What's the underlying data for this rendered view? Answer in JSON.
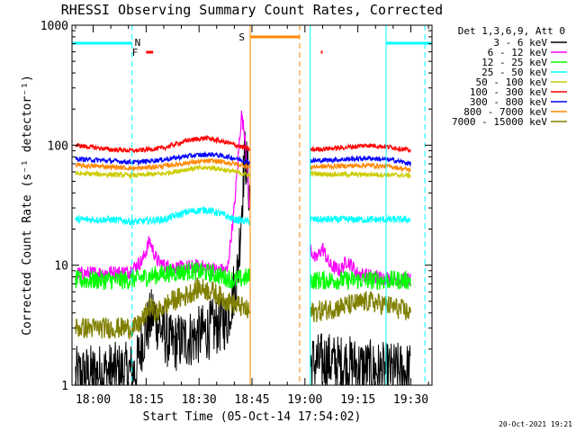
{
  "chart_data": {
    "type": "line",
    "title": "RHESSI Observing Summary Count Rates, Corrected",
    "xlabel": "Start Time (05-Oct-14 17:54:02)",
    "ylabel": "Corrected Count Rate (s⁻¹ detector⁻¹)",
    "yscale": "log",
    "ylim": [
      1,
      1000
    ],
    "xlim_minutes": [
      -6,
      96
    ],
    "x_ticks": [
      {
        "label": "18:00",
        "min": 0
      },
      {
        "label": "18:15",
        "min": 15
      },
      {
        "label": "18:30",
        "min": 30
      },
      {
        "label": "18:45",
        "min": 45
      },
      {
        "label": "19:00",
        "min": 60
      },
      {
        "label": "19:15",
        "min": 75
      },
      {
        "label": "19:30",
        "min": 90
      }
    ],
    "y_ticks": [
      {
        "label": "1",
        "value": 1
      },
      {
        "label": "10",
        "value": 10
      },
      {
        "label": "100",
        "value": 100
      },
      {
        "label": "1000",
        "value": 1000
      }
    ],
    "legend_header": "Det 1,3,6,9, Att 0",
    "legend_placement": "right",
    "timestamp": "20-Oct-2021 19:21",
    "data_gap_minutes": [
      45,
      61.5
    ],
    "series": [
      {
        "name": "3 - 6 keV",
        "color": "#000000",
        "x": [
          -5,
          5,
          12,
          14,
          17,
          19,
          22,
          30,
          38,
          41,
          43,
          44.5
        ],
        "y": [
          1.2,
          1.3,
          1.3,
          2.4,
          4.0,
          3.0,
          2.2,
          2.6,
          3.5,
          9.0,
          90.0,
          35.0
        ],
        "x2": [
          61.5,
          66,
          69,
          72,
          76,
          82,
          90
        ],
        "y2": [
          1.5,
          1.6,
          1.5,
          1.5,
          1.4,
          1.3,
          1.3
        ]
      },
      {
        "name": "6 - 12 keV",
        "color": "#ff00ff",
        "x": [
          -5,
          10,
          14,
          16,
          18,
          20,
          24,
          30,
          34,
          38,
          40,
          42,
          43,
          44.5
        ],
        "y": [
          8.5,
          8.8,
          11.0,
          16.0,
          11.0,
          10.0,
          9.5,
          9.8,
          9.2,
          9.0,
          30.0,
          180.0,
          120.0,
          25.0
        ],
        "x2": [
          61.5,
          63,
          65,
          67,
          70,
          72,
          75,
          80,
          90
        ],
        "y2": [
          14.0,
          11.0,
          14.0,
          10.0,
          9.0,
          11.0,
          8.5,
          8.0,
          7.5
        ]
      },
      {
        "name": "12 - 25 keV",
        "color": "#00ff00",
        "x": [
          -5,
          10,
          20,
          28,
          34,
          40,
          44.5
        ],
        "y": [
          7.5,
          7.5,
          8.5,
          9.0,
          8.5,
          7.5,
          8.0
        ],
        "x2": [
          61.5,
          70,
          80,
          90
        ],
        "y2": [
          7.5,
          7.5,
          7.5,
          7.5
        ]
      },
      {
        "name": "25 - 50 keV",
        "color": "#00ffff",
        "x": [
          -5,
          5,
          12,
          20,
          27,
          32,
          36,
          40,
          44.5
        ],
        "y": [
          24.0,
          24.0,
          23.0,
          24.0,
          28.0,
          29.0,
          27.0,
          24.0,
          23.0
        ],
        "x2": [
          61.5,
          70,
          80,
          90
        ],
        "y2": [
          24.0,
          24.0,
          24.0,
          24.0
        ]
      },
      {
        "name": "50 - 100 keV",
        "color": "#cccc00",
        "x": [
          -5,
          5,
          12,
          20,
          28,
          34,
          40,
          44.5
        ],
        "y": [
          58.0,
          57.0,
          56.0,
          58.0,
          64.0,
          65.0,
          60.0,
          56.0
        ],
        "x2": [
          61.5,
          70,
          80,
          90
        ],
        "y2": [
          58.0,
          57.0,
          57.0,
          56.0
        ]
      },
      {
        "name": "100 - 300 keV",
        "color": "#ff0000",
        "x": [
          -5,
          5,
          12,
          20,
          27,
          32,
          38,
          44.5
        ],
        "y": [
          100.0,
          92.0,
          90.0,
          95.0,
          110.0,
          115.0,
          105.0,
          92.0
        ],
        "x2": [
          61.5,
          70,
          78,
          85,
          90
        ],
        "y2": [
          92.0,
          95.0,
          100.0,
          96.0,
          90.0
        ]
      },
      {
        "name": "300 - 800 keV",
        "color": "#0000ff",
        "x": [
          -5,
          5,
          12,
          20,
          28,
          34,
          40,
          44.5
        ],
        "y": [
          77.0,
          74.0,
          72.0,
          76.0,
          82.0,
          84.0,
          78.0,
          72.0
        ],
        "x2": [
          61.5,
          70,
          78,
          85,
          90
        ],
        "y2": [
          74.0,
          76.0,
          78.0,
          75.0,
          70.0
        ]
      },
      {
        "name": "800 - 7000 keV",
        "color": "#ff8800",
        "x": [
          -5,
          5,
          12,
          20,
          28,
          34,
          40,
          44.5
        ],
        "y": [
          68.0,
          66.0,
          64.0,
          67.0,
          72.0,
          74.0,
          70.0,
          66.0
        ],
        "x2": [
          61.5,
          70,
          78,
          85,
          90
        ],
        "y2": [
          66.0,
          67.0,
          68.0,
          66.0,
          62.0
        ]
      },
      {
        "name": "7000 - 15000 keV",
        "color": "#808000",
        "x": [
          -5,
          5,
          12,
          14,
          16,
          18,
          22,
          26,
          30,
          34,
          38,
          42,
          44.5
        ],
        "y": [
          3.0,
          3.0,
          3.0,
          3.5,
          4.5,
          4.0,
          5.0,
          5.5,
          6.5,
          6.0,
          5.0,
          4.5,
          4.0
        ],
        "x2": [
          61.5,
          70,
          78,
          85,
          90
        ],
        "y2": [
          4.0,
          4.5,
          5.0,
          4.5,
          4.0
        ]
      }
    ],
    "annotations": [
      {
        "label": "N",
        "color": "#00ffff",
        "x": 12,
        "kind": "night",
        "bars": [
          [
            -6,
            11
          ],
          [
            83,
            96
          ]
        ]
      },
      {
        "label": "F",
        "color": "#ff0000",
        "x": 11.5,
        "kind": "flag",
        "bars": [
          [
            15,
            17
          ],
          [
            64.5,
            65
          ]
        ]
      },
      {
        "label": "S",
        "color": "#ff8800",
        "x": 41,
        "kind": "saa",
        "bars": [
          [
            44.5,
            58.5
          ]
        ]
      }
    ],
    "colors": {
      "axis": "#000000",
      "night": "#00ffff",
      "saa": "#ff8800",
      "flag": "#ff0000"
    }
  }
}
